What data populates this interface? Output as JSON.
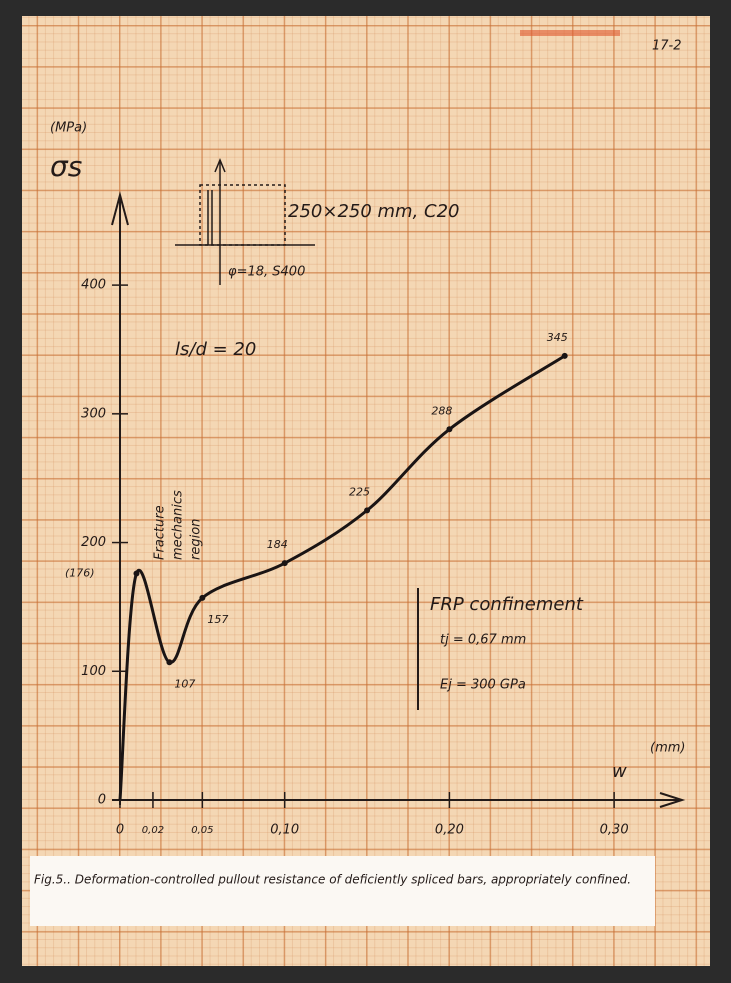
{
  "page_number": "17-2",
  "caption": "Fig.5.. Deformation-controlled pullout resistance of deficiently spliced bars, appropriately confined.",
  "chart_data": {
    "type": "line",
    "y_label": "(MPa)",
    "y_symbol": "σs",
    "x_label": "(mm)",
    "x_symbol": "w",
    "x": [
      0,
      0.01,
      0.03,
      0.05,
      0.1,
      0.15,
      0.2,
      0.27
    ],
    "values": [
      0,
      176,
      107,
      157,
      184,
      225,
      288,
      345
    ],
    "value_labels": [
      null,
      "(176)",
      "107",
      "157",
      "184",
      "225",
      "288",
      "345"
    ],
    "color": "#1a1414",
    "xlim": [
      0,
      0.34
    ],
    "ylim": [
      0,
      470
    ],
    "xticks": [
      0,
      {
        "value": 0.02,
        "label": "0,02"
      },
      {
        "value": 0.05,
        "label": "0,05"
      },
      {
        "value": 0.1,
        "label": "0,10"
      },
      {
        "value": 0.2,
        "label": "0,20"
      },
      {
        "value": 0.3,
        "label": "0,30"
      }
    ],
    "yticks": [
      0,
      100,
      200,
      300,
      400
    ],
    "annotations": {
      "section": "250×250 mm, C20",
      "bars": "φ=18, S400",
      "ratio": "ls/d = 20",
      "region": [
        "Fracture",
        "mechanics",
        "region"
      ],
      "frp_title": "FRP confinement",
      "frp_t": "tj = 0,67 mm",
      "frp_e": "Ej = 300 GPa"
    }
  }
}
